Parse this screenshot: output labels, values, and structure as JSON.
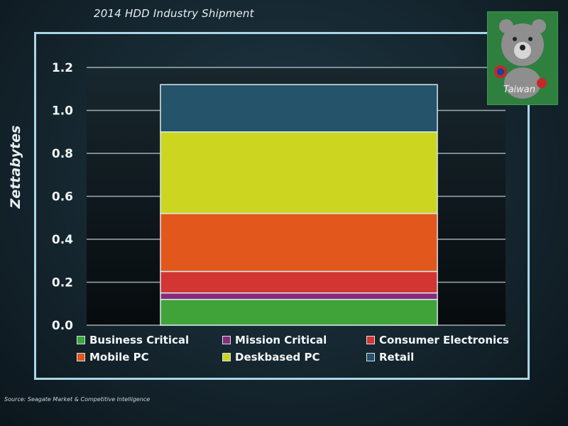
{
  "chart_data": {
    "type": "bar",
    "stacked": true,
    "title": "2014 HDD Industry Shipment",
    "ylabel": "Zettabytes",
    "ylim": [
      0,
      1.2
    ],
    "yticks": [
      "0.0",
      "0.2",
      "0.4",
      "0.6",
      "0.8",
      "1.0",
      "1.2"
    ],
    "categories": [
      ""
    ],
    "grid": true,
    "legend_position": "bottom",
    "series": [
      {
        "name": "Business Critical",
        "values": [
          0.12
        ],
        "color": "#3fa33a"
      },
      {
        "name": "Mission Critical",
        "values": [
          0.03
        ],
        "color": "#8a2a7a"
      },
      {
        "name": "Consumer Electronics",
        "values": [
          0.1
        ],
        "color": "#d23532"
      },
      {
        "name": "Mobile PC",
        "values": [
          0.27
        ],
        "color": "#e2571c"
      },
      {
        "name": "Deskbased PC",
        "values": [
          0.38
        ],
        "color": "#ccd621"
      },
      {
        "name": "Retail",
        "values": [
          0.22
        ],
        "color": "#24536a"
      }
    ]
  },
  "source": "Source: Seagate Market & Competitive Intelligence",
  "watermark_text": "Taiwan"
}
